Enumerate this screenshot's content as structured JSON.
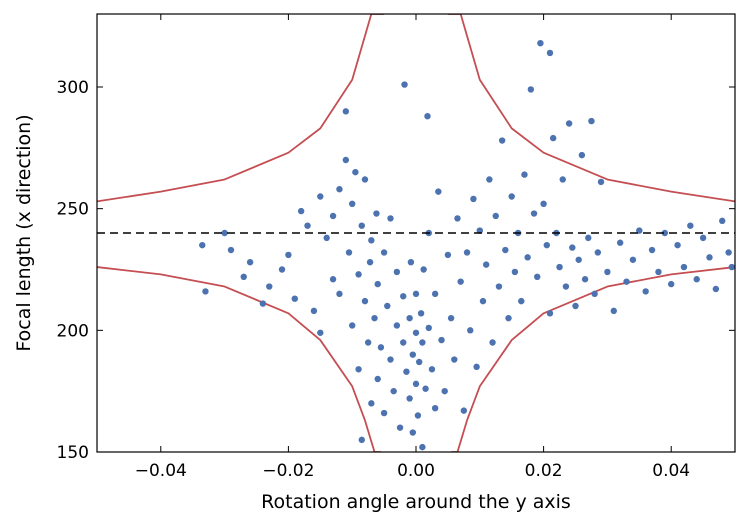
{
  "chart_data": {
    "type": "scatter",
    "title": "",
    "xlabel": "Rotation angle around the y axis",
    "ylabel": "Focal length (x direction)",
    "xlim": [
      -0.05,
      0.05
    ],
    "ylim": [
      150,
      330
    ],
    "xticks": [
      -0.04,
      -0.02,
      0.0,
      0.02,
      0.04
    ],
    "xtick_labels": [
      "−0.04",
      "−0.02",
      "0.00",
      "0.02",
      "0.04"
    ],
    "yticks": [
      150,
      200,
      250,
      300
    ],
    "ytick_labels": [
      "150",
      "200",
      "250",
      "300"
    ],
    "grid": false,
    "legend": "none",
    "reference_line": {
      "y": 240,
      "style": "dashed",
      "color": "#000000"
    },
    "bounds": {
      "color": "#c44e52",
      "center_x": 0.0,
      "center_y": 240,
      "curves": [
        {
          "x": [
            -0.05,
            -0.04,
            -0.03,
            -0.02,
            -0.015,
            -0.01,
            -0.007,
            -0.005
          ],
          "y": [
            253,
            257,
            262,
            273,
            283,
            303,
            330,
            330
          ]
        },
        {
          "x": [
            0.005,
            0.007,
            0.01,
            0.015,
            0.02,
            0.03,
            0.04,
            0.05
          ],
          "y": [
            330,
            330,
            303,
            283,
            273,
            262,
            257,
            253
          ]
        },
        {
          "x": [
            -0.05,
            -0.04,
            -0.03,
            -0.02,
            -0.015,
            -0.01,
            -0.008,
            -0.0065,
            -0.0055
          ],
          "y": [
            226,
            223,
            218,
            207,
            196,
            177,
            163,
            150,
            150
          ]
        },
        {
          "x": [
            0.0055,
            0.0065,
            0.008,
            0.01,
            0.015,
            0.02,
            0.03,
            0.04,
            0.05
          ],
          "y": [
            150,
            150,
            163,
            177,
            196,
            207,
            218,
            223,
            226
          ]
        }
      ]
    },
    "series": [
      {
        "color": "#4c72b0",
        "points": [
          [
            -0.033,
            216
          ],
          [
            -0.0335,
            235
          ],
          [
            -0.03,
            240
          ],
          [
            -0.029,
            233
          ],
          [
            -0.027,
            222
          ],
          [
            -0.026,
            228
          ],
          [
            -0.024,
            211
          ],
          [
            -0.023,
            218
          ],
          [
            -0.021,
            225
          ],
          [
            -0.02,
            231
          ],
          [
            -0.019,
            213
          ],
          [
            -0.018,
            249
          ],
          [
            -0.017,
            243
          ],
          [
            -0.016,
            208
          ],
          [
            -0.015,
            255
          ],
          [
            -0.015,
            199
          ],
          [
            -0.014,
            238
          ],
          [
            -0.013,
            221
          ],
          [
            -0.013,
            247
          ],
          [
            -0.012,
            215
          ],
          [
            -0.012,
            258
          ],
          [
            -0.011,
            290
          ],
          [
            -0.011,
            270
          ],
          [
            -0.0105,
            232
          ],
          [
            -0.01,
            202
          ],
          [
            -0.01,
            252
          ],
          [
            -0.0095,
            265
          ],
          [
            -0.009,
            184
          ],
          [
            -0.009,
            223
          ],
          [
            -0.0085,
            243
          ],
          [
            -0.0085,
            155
          ],
          [
            -0.008,
            212
          ],
          [
            -0.008,
            262
          ],
          [
            -0.0075,
            195
          ],
          [
            -0.0072,
            228
          ],
          [
            -0.007,
            170
          ],
          [
            -0.007,
            237
          ],
          [
            -0.0065,
            205
          ],
          [
            -0.0062,
            248
          ],
          [
            -0.006,
            180
          ],
          [
            -0.006,
            219
          ],
          [
            -0.0055,
            193
          ],
          [
            -0.005,
            166
          ],
          [
            -0.005,
            232
          ],
          [
            -0.0045,
            210
          ],
          [
            -0.004,
            188
          ],
          [
            -0.004,
            246
          ],
          [
            -0.0035,
            175
          ],
          [
            -0.003,
            202
          ],
          [
            -0.003,
            224
          ],
          [
            -0.0025,
            160
          ],
          [
            -0.002,
            195
          ],
          [
            -0.002,
            214
          ],
          [
            -0.0018,
            301
          ],
          [
            -0.0015,
            183
          ],
          [
            -0.001,
            172
          ],
          [
            -0.001,
            205
          ],
          [
            -0.0008,
            228
          ],
          [
            -0.0005,
            158
          ],
          [
            -0.0005,
            190
          ],
          [
            0.0,
            178
          ],
          [
            0.0,
            199
          ],
          [
            0.0,
            215
          ],
          [
            0.0003,
            165
          ],
          [
            0.0005,
            187
          ],
          [
            0.0008,
            207
          ],
          [
            0.001,
            152
          ],
          [
            0.001,
            195
          ],
          [
            0.0012,
            225
          ],
          [
            0.0015,
            176
          ],
          [
            0.0018,
            288
          ],
          [
            0.002,
            201
          ],
          [
            0.002,
            240
          ],
          [
            0.0025,
            184
          ],
          [
            0.003,
            168
          ],
          [
            0.003,
            215
          ],
          [
            0.0035,
            257
          ],
          [
            0.004,
            196
          ],
          [
            0.0045,
            175
          ],
          [
            0.005,
            231
          ],
          [
            0.0055,
            205
          ],
          [
            0.006,
            188
          ],
          [
            0.0065,
            246
          ],
          [
            0.007,
            220
          ],
          [
            0.0075,
            167
          ],
          [
            0.008,
            232
          ],
          [
            0.0085,
            200
          ],
          [
            0.009,
            254
          ],
          [
            0.0095,
            185
          ],
          [
            0.01,
            241
          ],
          [
            0.0105,
            212
          ],
          [
            0.011,
            227
          ],
          [
            0.0115,
            262
          ],
          [
            0.012,
            195
          ],
          [
            0.0125,
            247
          ],
          [
            0.013,
            218
          ],
          [
            0.0135,
            278
          ],
          [
            0.014,
            233
          ],
          [
            0.0145,
            205
          ],
          [
            0.015,
            255
          ],
          [
            0.0155,
            224
          ],
          [
            0.016,
            240
          ],
          [
            0.0165,
            212
          ],
          [
            0.017,
            264
          ],
          [
            0.0175,
            230
          ],
          [
            0.018,
            299
          ],
          [
            0.0185,
            248
          ],
          [
            0.019,
            222
          ],
          [
            0.0195,
            318
          ],
          [
            0.02,
            252
          ],
          [
            0.0205,
            235
          ],
          [
            0.021,
            314
          ],
          [
            0.021,
            207
          ],
          [
            0.0215,
            279
          ],
          [
            0.022,
            240
          ],
          [
            0.0225,
            226
          ],
          [
            0.023,
            262
          ],
          [
            0.0235,
            218
          ],
          [
            0.024,
            285
          ],
          [
            0.0245,
            234
          ],
          [
            0.025,
            210
          ],
          [
            0.0255,
            229
          ],
          [
            0.026,
            272
          ],
          [
            0.0265,
            221
          ],
          [
            0.027,
            238
          ],
          [
            0.0275,
            286
          ],
          [
            0.028,
            215
          ],
          [
            0.0285,
            232
          ],
          [
            0.029,
            261
          ],
          [
            0.03,
            224
          ],
          [
            0.031,
            208
          ],
          [
            0.032,
            236
          ],
          [
            0.033,
            220
          ],
          [
            0.034,
            229
          ],
          [
            0.035,
            241
          ],
          [
            0.036,
            216
          ],
          [
            0.037,
            233
          ],
          [
            0.038,
            224
          ],
          [
            0.039,
            240
          ],
          [
            0.04,
            219
          ],
          [
            0.041,
            235
          ],
          [
            0.042,
            226
          ],
          [
            0.043,
            243
          ],
          [
            0.044,
            221
          ],
          [
            0.045,
            238
          ],
          [
            0.046,
            230
          ],
          [
            0.047,
            217
          ],
          [
            0.048,
            245
          ],
          [
            0.049,
            232
          ],
          [
            0.0495,
            226
          ]
        ]
      }
    ]
  }
}
